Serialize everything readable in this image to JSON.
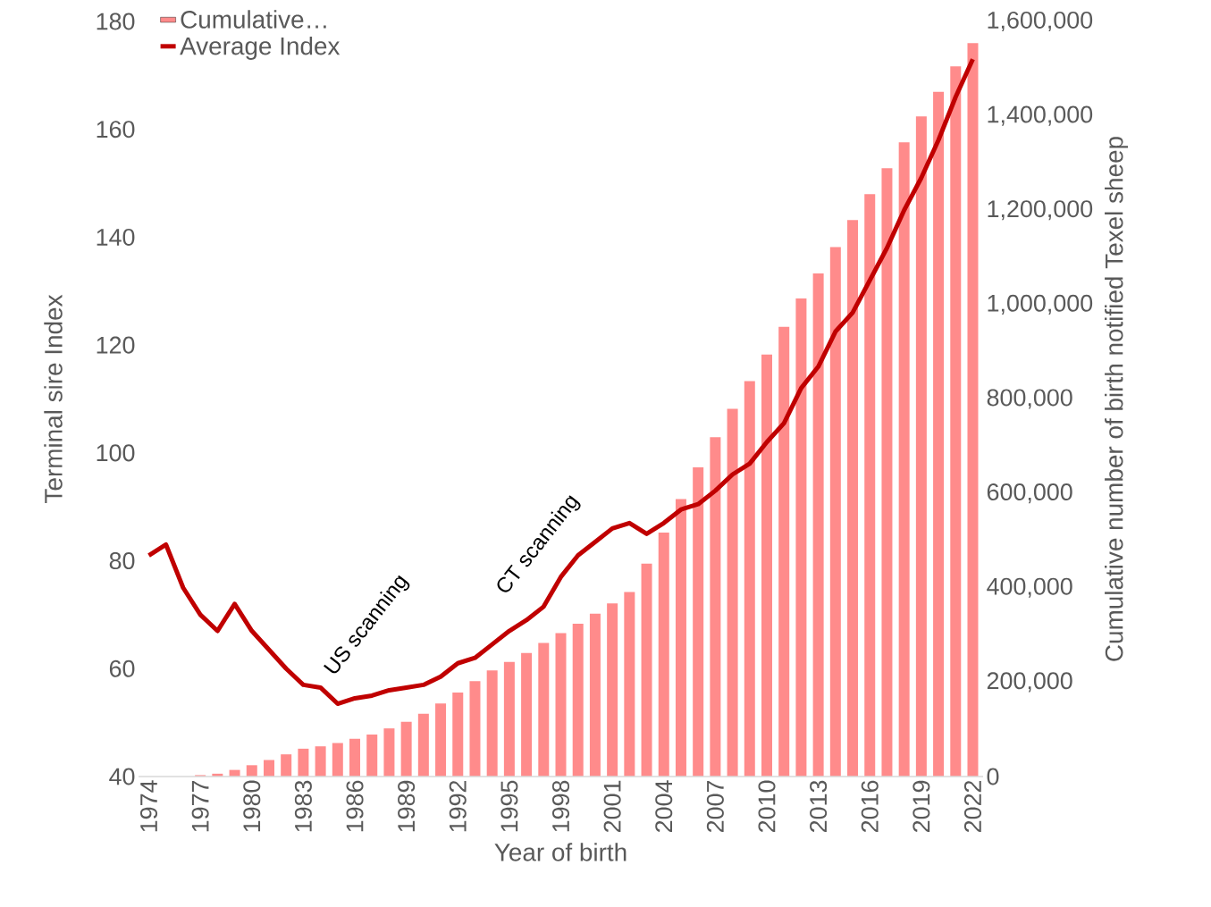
{
  "chart_data": {
    "type": "bar",
    "xlabel": "Year of birth",
    "ylabel": "Terminal sire Index",
    "y2label": "Cumulative number of birth notified Texel sheep",
    "categories": [
      "1974",
      null,
      null,
      "1977",
      null,
      null,
      "1980",
      null,
      null,
      "1983",
      null,
      null,
      "1986",
      null,
      null,
      "1989",
      null,
      null,
      "1992",
      null,
      null,
      "1995",
      null,
      null,
      "1998",
      null,
      null,
      "2001",
      null,
      null,
      "2004",
      null,
      null,
      "2007",
      null,
      null,
      "2010",
      null,
      null,
      "2013",
      null,
      null,
      "2016",
      null,
      null,
      "2019",
      null,
      null,
      "2022"
    ],
    "series": [
      {
        "name": "Cumulative…",
        "axis": "y2",
        "color": "#ff8b8b",
        "values": [
          0,
          null,
          null,
          3000,
          6000,
          14000,
          24000,
          35000,
          47000,
          59000,
          64000,
          71000,
          80000,
          89000,
          102000,
          116000,
          133000,
          155000,
          178000,
          202000,
          225000,
          243000,
          262000,
          283000,
          304000,
          324000,
          345000,
          367000,
          391000,
          451000,
          517000,
          588000,
          655000,
          719000,
          779000,
          838000,
          894000,
          953000,
          1013000,
          1066000,
          1122000,
          1179000,
          1234000,
          1289000,
          1344000,
          1399000,
          1451000,
          1505000,
          1554000
        ]
      },
      {
        "name": "Average Index",
        "type": "line",
        "color": "#c00000",
        "values": [
          81,
          83,
          75,
          70,
          67,
          72,
          67,
          63.5,
          60,
          57,
          56.5,
          53.5,
          54.5,
          55,
          56,
          56.5,
          57,
          58.5,
          61,
          62,
          64.5,
          67,
          69,
          71.5,
          77,
          81,
          83.5,
          86,
          87,
          85,
          87,
          89.5,
          90.5,
          93,
          96,
          98,
          102,
          105.5,
          112,
          116,
          122.5,
          126,
          132,
          138,
          145,
          151,
          158,
          166,
          173
        ]
      }
    ],
    "ylim": [
      40,
      180
    ],
    "yticks": [
      40,
      60,
      80,
      100,
      120,
      140,
      160,
      180
    ],
    "y2lim": [
      0,
      1600000
    ],
    "y2ticks": [
      0,
      {
        "value": 200000,
        "label": "200,000"
      },
      {
        "value": 400000,
        "label": "400,000"
      },
      {
        "value": 600000,
        "label": "600,000"
      },
      {
        "value": 800000,
        "label": "800,000"
      },
      {
        "value": 1000000,
        "label": "1,000,000"
      },
      {
        "value": 1200000,
        "label": "1,200,000"
      },
      {
        "value": 1400000,
        "label": "1,400,000"
      },
      {
        "value": 1600000,
        "label": "1,600,000"
      }
    ],
    "annotations": [
      "US scanning",
      "CT scanning"
    ],
    "legend": "top left",
    "marker": "none"
  }
}
